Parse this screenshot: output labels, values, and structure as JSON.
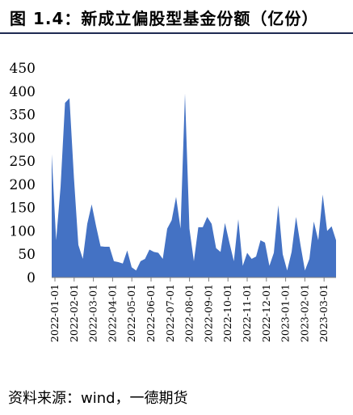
{
  "header": {
    "title": "图 1.4：新成立偏股型基金份额（亿份）"
  },
  "footer": {
    "source": "资料来源：wind，一德期货"
  },
  "chart_data": {
    "type": "area",
    "title": "图 1.4：新成立偏股型基金份额（亿份）",
    "xlabel": "",
    "ylabel": "",
    "ylim": [
      0,
      450
    ],
    "y_ticks": [
      "0",
      "50",
      "100",
      "150",
      "200",
      "250",
      "300",
      "350",
      "400",
      "450"
    ],
    "x_ticks": [
      "2022-01-01",
      "2022-02-01",
      "2022-03-01",
      "2022-04-01",
      "2022-05-01",
      "2022-06-01",
      "2022-07-01",
      "2022-08-01",
      "2022-09-01",
      "2022-10-01",
      "2022-11-01",
      "2022-12-01",
      "2023-01-01",
      "2023-02-01",
      "2023-03-01"
    ],
    "grid": false,
    "legend": "none",
    "fill_color": "#4472c4",
    "series": [
      {
        "values": [
          265,
          80,
          195,
          375,
          385,
          215,
          70,
          40,
          115,
          157,
          110,
          67,
          66,
          66,
          35,
          33,
          30,
          58,
          22,
          15,
          35,
          40,
          60,
          55,
          53,
          40,
          105,
          123,
          173,
          105,
          395,
          105,
          35,
          108,
          108,
          130,
          115,
          63,
          55,
          117,
          75,
          35,
          125,
          25,
          53,
          40,
          45,
          80,
          75,
          25,
          53,
          155,
          50,
          15,
          55,
          130,
          70,
          15,
          40,
          120,
          80,
          178,
          100,
          110,
          80
        ]
      }
    ]
  }
}
